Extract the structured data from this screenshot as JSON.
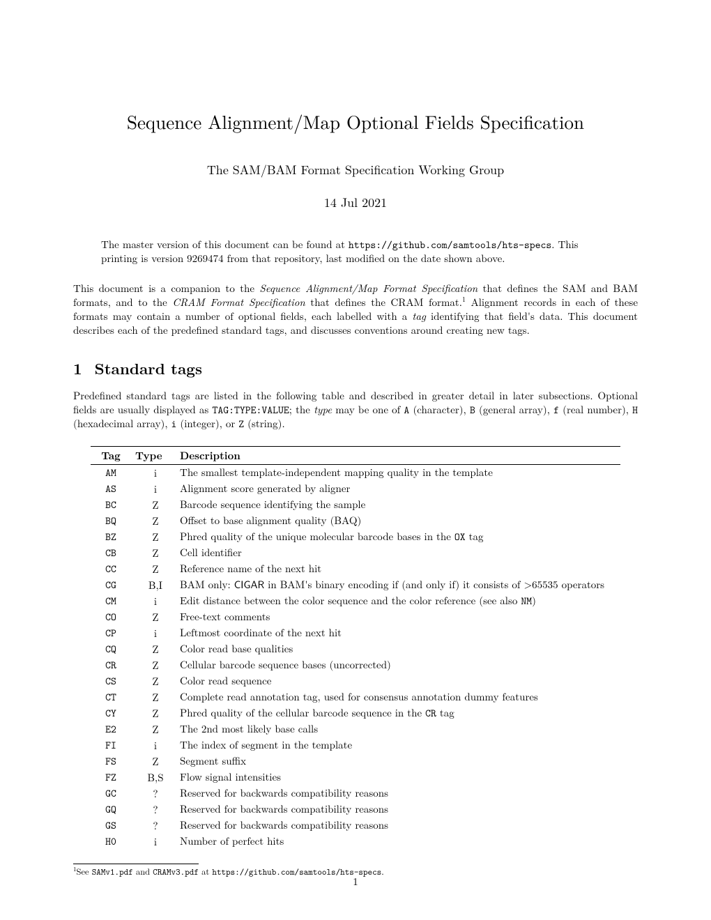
{
  "title": "Sequence Alignment/Map Optional Fields Specification",
  "author": "The SAM/BAM Format Specification Working Group",
  "date": "14 Jul 2021",
  "version_block": {
    "prefix": "The master version of this document can be found at ",
    "url": "https://github.com/samtools/hts-specs",
    "line2": "This printing is version 9269474 from that repository, last modified on the date shown above."
  },
  "intro": {
    "p1_a": "This document is a companion to the ",
    "p1_i1": "Sequence Alignment/Map Format Specification",
    "p1_b": " that defines the SAM and BAM formats, and to the ",
    "p1_i2": "CRAM Format Specification",
    "p1_c": " that defines the CRAM format.",
    "p1_fn": "1",
    "p1_d": " Alignment records in each of these formats may contain a number of optional fields, each labelled with a ",
    "p1_i3": "tag",
    "p1_e": " identifying that field's data. This document describes each of the predefined standard tags, and discusses conventions around creating new tags."
  },
  "section1": {
    "number": "1",
    "title": "Standard tags",
    "para_a": "Predefined standard tags are listed in the following table and described in greater detail in later subsections. Optional fields are usually displayed as ",
    "para_tt": "TAG:TYPE:VALUE",
    "para_b": "; the ",
    "para_i": "type",
    "para_c": " may be one of ",
    "t_A": "A",
    "d_A": " (character), ",
    "t_B": "B",
    "d_B": " (general array), ",
    "t_f": "f",
    "d_f": " (real number), ",
    "t_H": "H",
    "d_H": " (hexadecimal array), ",
    "t_i": "i",
    "d_i": " (integer), or ",
    "t_Z": "Z",
    "d_Z": " (string)."
  },
  "table": {
    "headers": {
      "tag": "Tag",
      "type": "Type",
      "desc": "Description"
    },
    "rows": [
      {
        "tag": "AM",
        "type": "i",
        "desc": "The smallest template-independent mapping quality in the template"
      },
      {
        "tag": "AS",
        "type": "i",
        "desc": "Alignment score generated by aligner"
      },
      {
        "tag": "BC",
        "type": "Z",
        "desc": "Barcode sequence identifying the sample"
      },
      {
        "tag": "BQ",
        "type": "Z",
        "desc": "Offset to base alignment quality (BAQ)"
      },
      {
        "tag": "BZ",
        "type": "Z",
        "desc_a": "Phred quality of the unique molecular barcode bases in the ",
        "desc_tt": "OX",
        "desc_b": " tag"
      },
      {
        "tag": "CB",
        "type": "Z",
        "desc": "Cell identifier"
      },
      {
        "tag": "CC",
        "type": "Z",
        "desc": "Reference name of the next hit"
      },
      {
        "tag": "CG",
        "type": "B,I",
        "desc_a": "BAM only: ",
        "desc_sans": "CIGAR",
        "desc_b": " in BAM's binary encoding if (and only if) it consists of >65535 operators"
      },
      {
        "tag": "CM",
        "type": "i",
        "desc_a": "Edit distance between the color sequence and the color reference (see also ",
        "desc_tt": "NM",
        "desc_b": ")"
      },
      {
        "tag": "CO",
        "type": "Z",
        "desc": "Free-text comments"
      },
      {
        "tag": "CP",
        "type": "i",
        "desc": "Leftmost coordinate of the next hit"
      },
      {
        "tag": "CQ",
        "type": "Z",
        "desc": "Color read base qualities"
      },
      {
        "tag": "CR",
        "type": "Z",
        "desc": "Cellular barcode sequence bases (uncorrected)"
      },
      {
        "tag": "CS",
        "type": "Z",
        "desc": "Color read sequence"
      },
      {
        "tag": "CT",
        "type": "Z",
        "desc": "Complete read annotation tag, used for consensus annotation dummy features"
      },
      {
        "tag": "CY",
        "type": "Z",
        "desc_a": "Phred quality of the cellular barcode sequence in the ",
        "desc_tt": "CR",
        "desc_b": " tag"
      },
      {
        "tag": "E2",
        "type": "Z",
        "desc": "The 2nd most likely base calls"
      },
      {
        "tag": "FI",
        "type": "i",
        "desc": "The index of segment in the template"
      },
      {
        "tag": "FS",
        "type": "Z",
        "desc": "Segment suffix"
      },
      {
        "tag": "FZ",
        "type": "B,S",
        "desc": "Flow signal intensities"
      },
      {
        "tag": "GC",
        "type": "?",
        "desc": "Reserved for backwards compatibility reasons"
      },
      {
        "tag": "GQ",
        "type": "?",
        "desc": "Reserved for backwards compatibility reasons"
      },
      {
        "tag": "GS",
        "type": "?",
        "desc": "Reserved for backwards compatibility reasons"
      },
      {
        "tag": "H0",
        "type": "i",
        "desc": "Number of perfect hits"
      }
    ]
  },
  "footnote": {
    "mark": "1",
    "a": "See ",
    "f1": "SAMv1.pdf",
    "b": " and ",
    "f2": "CRAMv3.pdf",
    "c": " at ",
    "url": "https://github.com/samtools/hts-specs",
    "d": "."
  },
  "page_number": "1"
}
